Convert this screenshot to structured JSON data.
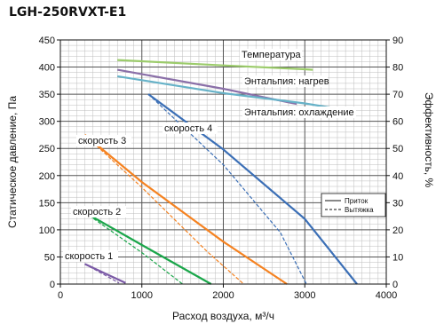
{
  "chart_data": {
    "type": "line",
    "title": "LGH-250RVXT-E1",
    "xlabel": "Расход воздуха, м³/ч",
    "ylabel_left": "Статическое давление, Па",
    "ylabel_right": "Эффективность, %",
    "xlim": [
      0,
      4000
    ],
    "ylim_left": [
      0,
      450
    ],
    "ylim_right": [
      0,
      90
    ],
    "xticks": [
      "0",
      "1000",
      "2000",
      "3000",
      "4000"
    ],
    "yticks_left": [
      "0",
      "50",
      "100",
      "150",
      "200",
      "250",
      "300",
      "350",
      "400",
      "450"
    ],
    "yticks_right": [
      "0",
      "10",
      "20",
      "30",
      "40",
      "50",
      "60",
      "70",
      "80",
      "90"
    ],
    "grid": true,
    "legend": {
      "position": "right",
      "entries": [
        {
          "label": "Приток",
          "style": "solid"
        },
        {
          "label": "Вытяжка",
          "style": "dashed"
        }
      ]
    },
    "series": [
      {
        "name": "скорость 1",
        "axis": "pressure",
        "color": "#7b5aa6",
        "style": "solid",
        "x": [
          300,
          800
        ],
        "y": [
          37,
          2
        ]
      },
      {
        "name": "скорость 1",
        "axis": "pressure",
        "color": "#7b5aa6",
        "style": "dashed",
        "x": [
          300,
          720
        ],
        "y": [
          37,
          2
        ]
      },
      {
        "name": "скорость 2",
        "axis": "pressure",
        "color": "#1aa64a",
        "style": "solid",
        "x": [
          300,
          1000,
          1850
        ],
        "y": [
          132,
          72,
          0
        ]
      },
      {
        "name": "скорость 2",
        "axis": "pressure",
        "color": "#1aa64a",
        "style": "dashed",
        "x": [
          300,
          1000,
          1500
        ],
        "y": [
          132,
          58,
          0
        ]
      },
      {
        "name": "скорость 3",
        "axis": "pressure",
        "color": "#f58220",
        "style": "solid",
        "x": [
          300,
          1000,
          2000,
          2780
        ],
        "y": [
          275,
          188,
          78,
          0
        ]
      },
      {
        "name": "скорость 3",
        "axis": "pressure",
        "color": "#f58220",
        "style": "dashed",
        "x": [
          300,
          1000,
          1800,
          2250
        ],
        "y": [
          275,
          178,
          60,
          0
        ]
      },
      {
        "name": "скорость 4",
        "axis": "pressure",
        "color": "#3b6fb6",
        "style": "solid",
        "x": [
          1080,
          2000,
          3000,
          3640
        ],
        "y": [
          350,
          248,
          120,
          0
        ]
      },
      {
        "name": "скорость 4",
        "axis": "pressure",
        "color": "#3b6fb6",
        "style": "dashed",
        "x": [
          1080,
          2000,
          2700,
          3020
        ],
        "y": [
          350,
          220,
          95,
          0
        ]
      },
      {
        "name": "Температура",
        "axis": "efficiency",
        "color": "#9ccc6b",
        "style": "solid",
        "x": [
          700,
          2000,
          3000,
          3100
        ],
        "y": [
          82.6,
          80.6,
          79.2,
          79
        ]
      },
      {
        "name": "Энтальпия: нагрев",
        "axis": "efficiency",
        "color": "#8a6fa8",
        "style": "solid",
        "x": [
          700,
          2000,
          2800,
          2900
        ],
        "y": [
          79,
          72,
          67,
          66.4
        ]
      },
      {
        "name": "Энтальпия: охлаждение",
        "axis": "efficiency",
        "color": "#66b2c8",
        "style": "solid",
        "x": [
          700,
          2000,
          3000,
          3450
        ],
        "y": [
          76.6,
          70.4,
          66.6,
          64.4
        ]
      }
    ],
    "annotations": [
      {
        "text": "скорость 1",
        "series": "скорость 1"
      },
      {
        "text": "скорость 2",
        "series": "скорость 2"
      },
      {
        "text": "скорость 3",
        "series": "скорость 3"
      },
      {
        "text": "скорость 4",
        "series": "скорость 4"
      },
      {
        "text": "Температура",
        "series": "Температура"
      },
      {
        "text": "Энтальпия: нагрев",
        "series": "Энтальпия: нагрев"
      },
      {
        "text": "Энтальпия: охлаждение",
        "series": "Энтальпия: охлаждение"
      }
    ]
  }
}
